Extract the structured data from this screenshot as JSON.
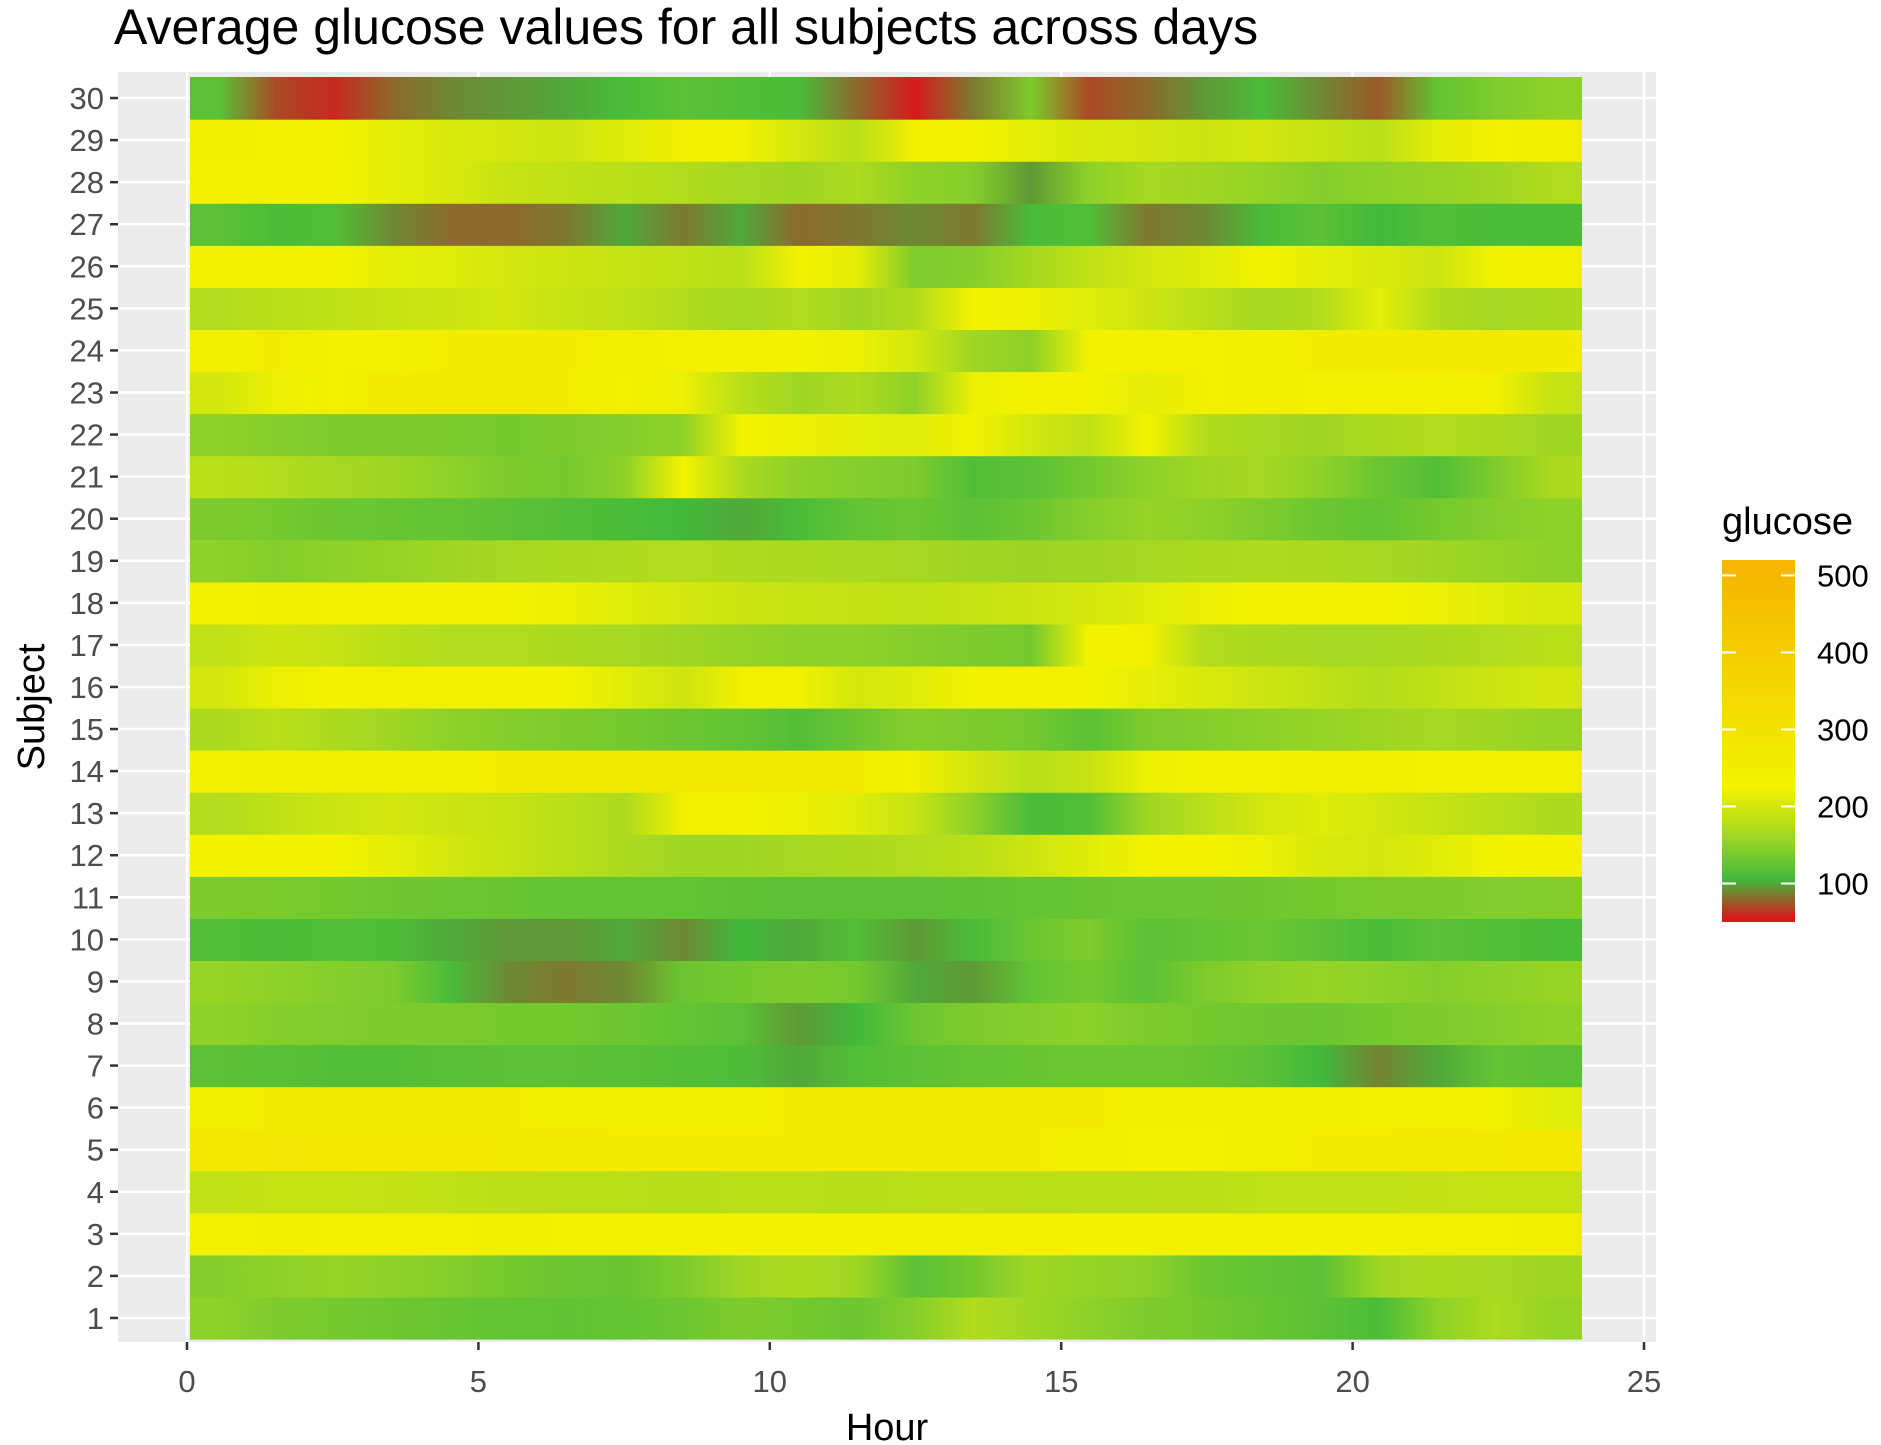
{
  "chart_data": {
    "type": "heatmap",
    "title": "Average glucose values for all subjects across days",
    "xlabel": "Hour",
    "ylabel": "Subject",
    "xlim": [
      0,
      25
    ],
    "x_ticks": [
      "0",
      "5",
      "10",
      "15",
      "20",
      "25"
    ],
    "y_ticks": [
      "1",
      "2",
      "3",
      "4",
      "5",
      "6",
      "7",
      "8",
      "9",
      "10",
      "11",
      "12",
      "13",
      "14",
      "15",
      "16",
      "17",
      "18",
      "19",
      "20",
      "21",
      "22",
      "23",
      "24",
      "25",
      "26",
      "27",
      "28",
      "29",
      "30"
    ],
    "hours": [
      0,
      1,
      2,
      3,
      4,
      5,
      6,
      7,
      8,
      9,
      10,
      11,
      12,
      13,
      14,
      15,
      16,
      17,
      18,
      19,
      20,
      21,
      22,
      23
    ],
    "legend": {
      "title": "glucose",
      "ticks": [
        "100",
        "200",
        "300",
        "400",
        "500"
      ],
      "range": [
        50,
        520
      ],
      "position": "right",
      "colors": [
        "#d7191c",
        "#41b93b",
        "#9fd624",
        "#f2f200",
        "#f5b700"
      ]
    },
    "grid": true,
    "series": [
      {
        "name": "1",
        "values": [
          150,
          140,
          135,
          132,
          128,
          125,
          124,
          126,
          130,
          140,
          135,
          130,
          145,
          175,
          160,
          150,
          140,
          135,
          128,
          120,
          110,
          150,
          170,
          155
        ]
      },
      {
        "name": "2",
        "values": [
          145,
          150,
          155,
          150,
          145,
          135,
          130,
          128,
          140,
          160,
          170,
          160,
          120,
          135,
          160,
          155,
          150,
          130,
          125,
          120,
          160,
          170,
          165,
          160
        ]
      },
      {
        "name": "3",
        "values": [
          235,
          245,
          240,
          238,
          240,
          242,
          240,
          235,
          232,
          230,
          228,
          230,
          232,
          235,
          232,
          230,
          228,
          226,
          225,
          225,
          230,
          235,
          240,
          242
        ]
      },
      {
        "name": "4",
        "values": [
          185,
          190,
          190,
          188,
          185,
          182,
          180,
          180,
          178,
          180,
          180,
          178,
          180,
          182,
          180,
          180,
          180,
          182,
          185,
          185,
          185,
          188,
          190,
          190
        ]
      },
      {
        "name": "5",
        "values": [
          270,
          280,
          275,
          272,
          270,
          265,
          260,
          255,
          250,
          250,
          248,
          250,
          252,
          255,
          250,
          245,
          240,
          240,
          245,
          250,
          255,
          260,
          265,
          270
        ]
      },
      {
        "name": "6",
        "values": [
          245,
          250,
          252,
          250,
          248,
          246,
          245,
          244,
          244,
          245,
          246,
          248,
          250,
          252,
          250,
          248,
          245,
          244,
          243,
          242,
          240,
          238,
          235,
          210
        ]
      },
      {
        "name": "7",
        "values": [
          120,
          118,
          115,
          115,
          118,
          120,
          120,
          118,
          115,
          112,
          100,
          115,
          120,
          125,
          128,
          130,
          130,
          128,
          120,
          105,
          88,
          100,
          125,
          120
        ]
      },
      {
        "name": "8",
        "values": [
          150,
          145,
          142,
          140,
          140,
          135,
          135,
          130,
          125,
          120,
          95,
          105,
          130,
          140,
          145,
          148,
          140,
          135,
          132,
          130,
          135,
          140,
          145,
          150
        ]
      },
      {
        "name": "9",
        "values": [
          155,
          150,
          145,
          140,
          110,
          90,
          85,
          90,
          130,
          135,
          140,
          135,
          100,
          95,
          125,
          135,
          120,
          140,
          150,
          155,
          150,
          145,
          150,
          155
        ]
      },
      {
        "name": "10",
        "values": [
          115,
          110,
          115,
          112,
          100,
          95,
          95,
          100,
          90,
          105,
          100,
          115,
          95,
          110,
          130,
          140,
          120,
          125,
          130,
          120,
          110,
          120,
          115,
          110
        ]
      },
      {
        "name": "11",
        "values": [
          140,
          138,
          135,
          132,
          130,
          128,
          125,
          125,
          125,
          122,
          120,
          120,
          120,
          122,
          125,
          128,
          130,
          130,
          132,
          135,
          138,
          140,
          142,
          145
        ]
      },
      {
        "name": "12",
        "values": [
          225,
          230,
          225,
          215,
          200,
          190,
          180,
          170,
          160,
          160,
          165,
          170,
          175,
          180,
          195,
          210,
          225,
          230,
          220,
          205,
          200,
          210,
          225,
          230
        ]
      },
      {
        "name": "13",
        "values": [
          175,
          185,
          195,
          200,
          195,
          190,
          180,
          170,
          240,
          230,
          220,
          210,
          190,
          150,
          110,
          115,
          160,
          180,
          200,
          210,
          200,
          190,
          180,
          170
        ]
      },
      {
        "name": "14",
        "values": [
          240,
          245,
          245,
          245,
          245,
          248,
          250,
          255,
          260,
          260,
          255,
          250,
          240,
          200,
          180,
          190,
          220,
          235,
          240,
          245,
          245,
          240,
          240,
          240
        ]
      },
      {
        "name": "15",
        "values": [
          170,
          180,
          170,
          160,
          150,
          145,
          140,
          135,
          130,
          125,
          115,
          130,
          145,
          140,
          135,
          120,
          140,
          145,
          150,
          155,
          160,
          165,
          160,
          155
        ]
      },
      {
        "name": "16",
        "values": [
          200,
          220,
          230,
          235,
          235,
          235,
          225,
          210,
          195,
          240,
          230,
          200,
          210,
          230,
          240,
          225,
          215,
          205,
          195,
          185,
          175,
          185,
          195,
          200
        ]
      },
      {
        "name": "17",
        "values": [
          185,
          195,
          190,
          180,
          175,
          175,
          170,
          165,
          160,
          155,
          150,
          150,
          145,
          140,
          135,
          225,
          235,
          175,
          170,
          165,
          165,
          170,
          175,
          180
        ]
      },
      {
        "name": "18",
        "values": [
          235,
          245,
          240,
          238,
          235,
          230,
          220,
          210,
          200,
          195,
          190,
          188,
          185,
          190,
          195,
          200,
          210,
          220,
          235,
          240,
          230,
          220,
          210,
          205
        ]
      },
      {
        "name": "19",
        "values": [
          150,
          145,
          150,
          155,
          160,
          165,
          170,
          172,
          175,
          172,
          170,
          168,
          165,
          160,
          158,
          160,
          165,
          170,
          172,
          170,
          165,
          160,
          155,
          150
        ]
      },
      {
        "name": "20",
        "values": [
          140,
          135,
          130,
          128,
          125,
          120,
          115,
          110,
          105,
          100,
          110,
          125,
          130,
          120,
          130,
          145,
          155,
          150,
          140,
          130,
          125,
          135,
          145,
          150
        ]
      },
      {
        "name": "21",
        "values": [
          180,
          175,
          165,
          160,
          150,
          140,
          135,
          150,
          225,
          170,
          150,
          145,
          140,
          115,
          120,
          135,
          150,
          160,
          165,
          150,
          130,
          115,
          140,
          170
        ]
      },
      {
        "name": "22",
        "values": [
          150,
          145,
          140,
          140,
          138,
          135,
          140,
          145,
          150,
          230,
          220,
          215,
          210,
          225,
          200,
          185,
          225,
          175,
          165,
          160,
          170,
          175,
          170,
          160
        ]
      },
      {
        "name": "23",
        "values": [
          200,
          220,
          240,
          255,
          260,
          260,
          250,
          240,
          220,
          180,
          160,
          170,
          150,
          220,
          235,
          230,
          215,
          240,
          245,
          240,
          235,
          230,
          240,
          190
        ]
      },
      {
        "name": "24",
        "values": [
          245,
          250,
          240,
          240,
          248,
          255,
          250,
          245,
          240,
          235,
          230,
          220,
          200,
          160,
          150,
          225,
          235,
          240,
          245,
          250,
          255,
          260,
          265,
          255
        ]
      },
      {
        "name": "25",
        "values": [
          175,
          180,
          185,
          190,
          195,
          200,
          190,
          185,
          175,
          165,
          175,
          160,
          175,
          230,
          220,
          210,
          195,
          180,
          165,
          175,
          215,
          175,
          165,
          170
        ]
      },
      {
        "name": "26",
        "values": [
          240,
          235,
          225,
          215,
          210,
          200,
          195,
          190,
          185,
          180,
          230,
          215,
          140,
          145,
          165,
          185,
          200,
          210,
          225,
          215,
          205,
          195,
          225,
          235
        ]
      },
      {
        "name": "27",
        "values": [
          120,
          110,
          115,
          90,
          80,
          80,
          85,
          100,
          85,
          100,
          80,
          85,
          90,
          85,
          110,
          115,
          85,
          90,
          110,
          120,
          105,
          115,
          110,
          110
        ]
      },
      {
        "name": "28",
        "values": [
          240,
          230,
          225,
          215,
          205,
          190,
          185,
          180,
          175,
          165,
          160,
          170,
          150,
          145,
          95,
          150,
          165,
          160,
          155,
          145,
          150,
          155,
          160,
          175
        ]
      },
      {
        "name": "29",
        "values": [
          245,
          240,
          230,
          215,
          205,
          200,
          195,
          210,
          240,
          235,
          200,
          180,
          240,
          230,
          215,
          205,
          200,
          195,
          200,
          190,
          180,
          215,
          240,
          245
        ]
      },
      {
        "name": "30",
        "values": [
          120,
          70,
          60,
          80,
          90,
          95,
          100,
          110,
          120,
          115,
          110,
          80,
          55,
          85,
          140,
          70,
          80,
          95,
          110,
          90,
          75,
          125,
          140,
          150
        ]
      }
    ]
  }
}
